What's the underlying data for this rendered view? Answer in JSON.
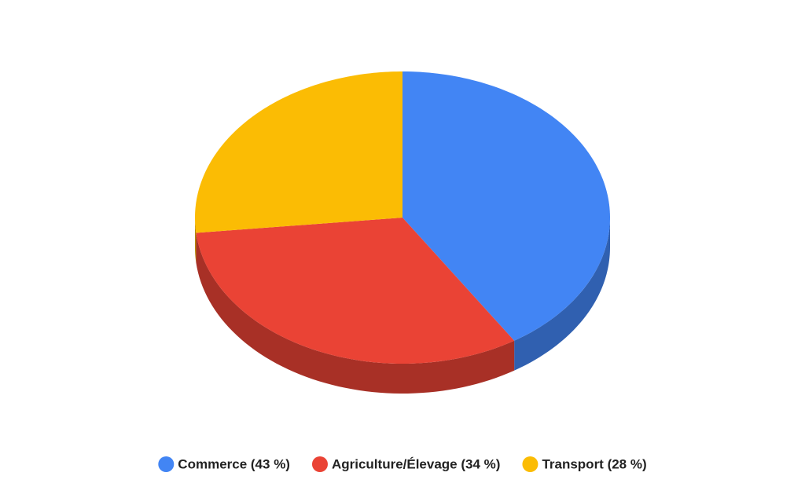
{
  "chart_data": {
    "type": "pie3d",
    "categories": [
      "Commerce (43 %)",
      "Agriculture/Élevage (34 %)",
      "Transport (28 %)"
    ],
    "values": [
      43,
      34,
      28
    ],
    "colors": [
      "#4285f4",
      "#ea4335",
      "#fbbc04"
    ],
    "legend": "bottom"
  }
}
